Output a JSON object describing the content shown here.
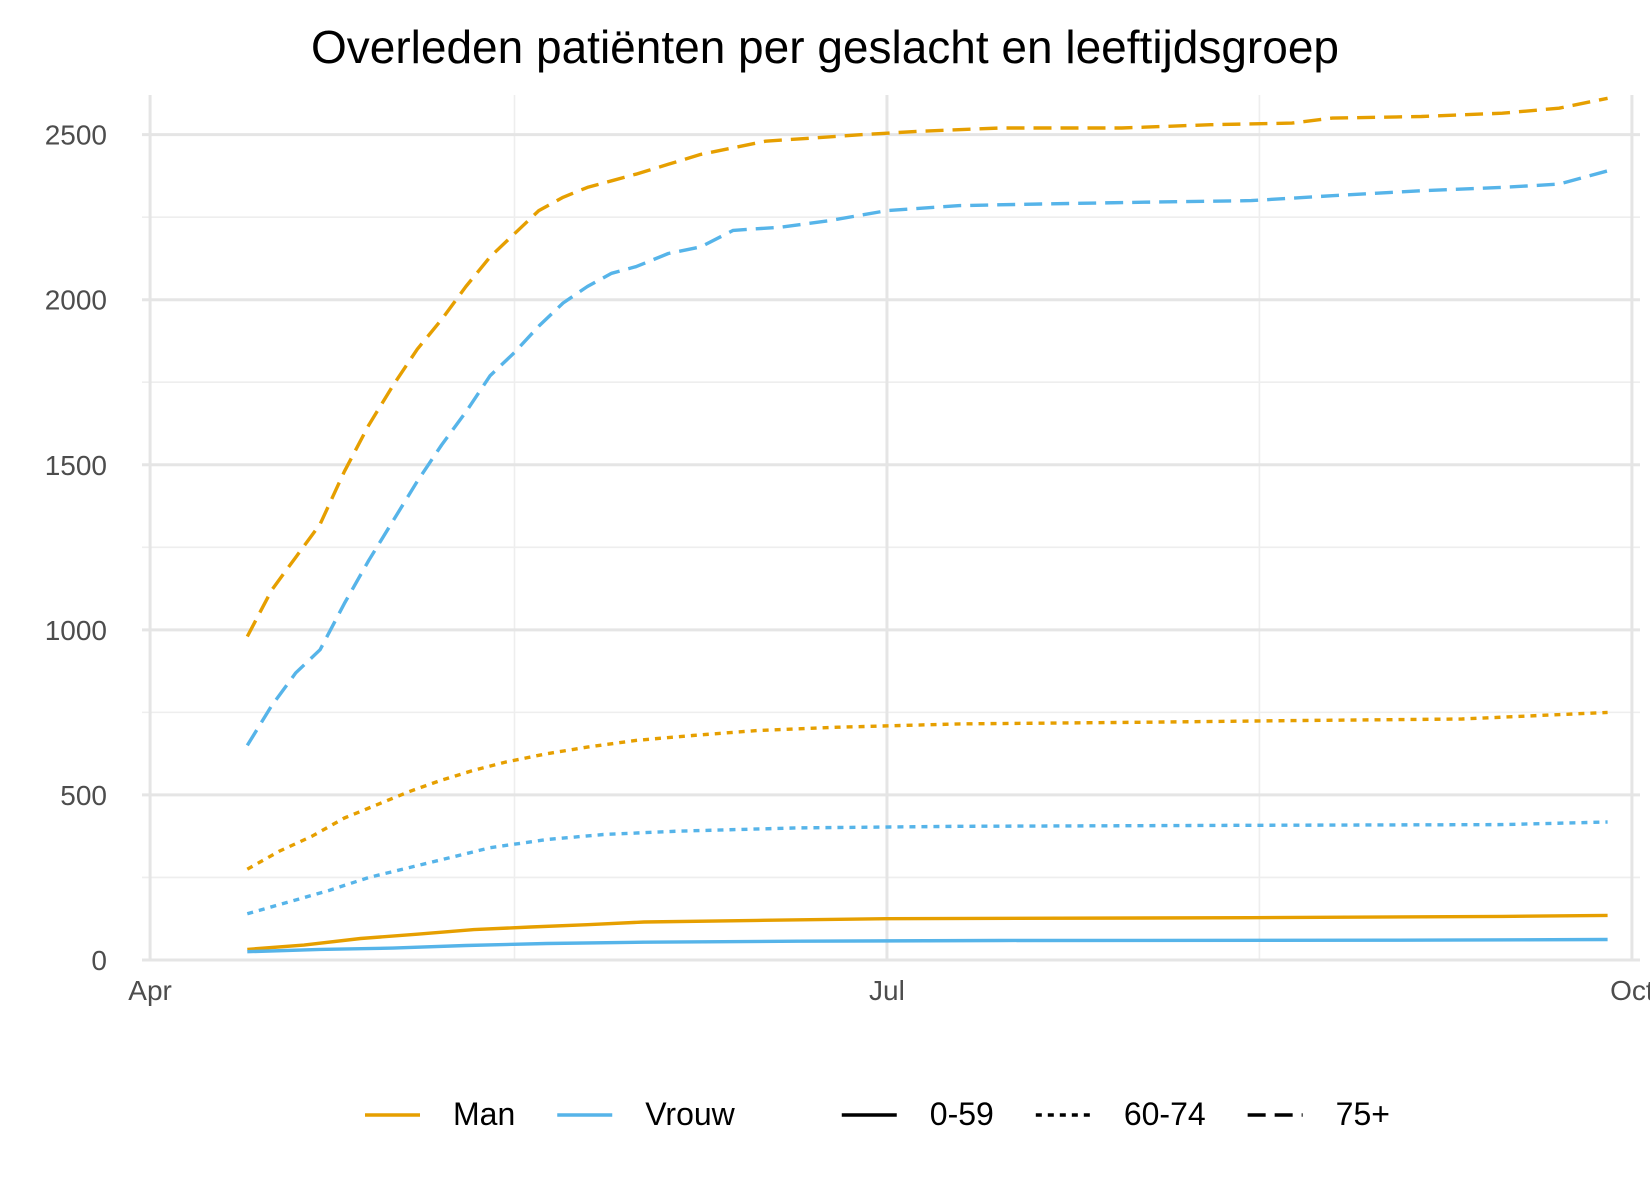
{
  "chart_data": {
    "type": "line",
    "title": "Overleden patiënten per geslacht en leeftijdsgroep",
    "xlabel": "",
    "ylabel": "",
    "x_axis": {
      "type": "time",
      "range": [
        "2020-03-31",
        "2020-10-02"
      ],
      "ticks": [
        {
          "date": "2020-04-01",
          "label": "Apr"
        },
        {
          "date": "2020-07-01",
          "label": "Jul"
        },
        {
          "date": "2020-10-01",
          "label": "Oct"
        }
      ],
      "minor_ticks": [
        "2020-05-16",
        "2020-08-16"
      ]
    },
    "y_axis": {
      "range": [
        0,
        2620
      ],
      "ticks": [
        0,
        500,
        1000,
        1500,
        2000,
        2500
      ],
      "minor_ticks": [
        250,
        750,
        1250,
        1750,
        2250
      ]
    },
    "grid": true,
    "colors": {
      "Man": "#E69F00",
      "Vrouw": "#56B4E9"
    },
    "line_styles": {
      "0-59": "solid",
      "60-74": "dotted",
      "75+": "dashed"
    },
    "legend": {
      "position": "bottom",
      "groups": [
        {
          "title": "",
          "entries": [
            {
              "label": "Man",
              "color": "#E69F00",
              "style": "solid"
            },
            {
              "label": "Vrouw",
              "color": "#56B4E9",
              "style": "solid"
            }
          ]
        },
        {
          "title": "",
          "entries": [
            {
              "label": "0-59",
              "color": "#000000",
              "style": "solid"
            },
            {
              "label": "60-74",
              "color": "#000000",
              "style": "dotted"
            },
            {
              "label": "75+",
              "color": "#000000",
              "style": "dashed"
            }
          ]
        }
      ]
    },
    "series": [
      {
        "name": "Man 75+",
        "gender": "Man",
        "age_group": "75+",
        "points": [
          [
            "2020-04-13",
            980
          ],
          [
            "2020-04-16",
            1120
          ],
          [
            "2020-04-19",
            1220
          ],
          [
            "2020-04-22",
            1320
          ],
          [
            "2020-04-25",
            1480
          ],
          [
            "2020-04-28",
            1620
          ],
          [
            "2020-05-01",
            1740
          ],
          [
            "2020-05-04",
            1850
          ],
          [
            "2020-05-07",
            1940
          ],
          [
            "2020-05-10",
            2040
          ],
          [
            "2020-05-13",
            2130
          ],
          [
            "2020-05-16",
            2200
          ],
          [
            "2020-05-19",
            2270
          ],
          [
            "2020-05-22",
            2310
          ],
          [
            "2020-05-25",
            2340
          ],
          [
            "2020-05-28",
            2360
          ],
          [
            "2020-05-31",
            2380
          ],
          [
            "2020-06-04",
            2410
          ],
          [
            "2020-06-08",
            2440
          ],
          [
            "2020-06-12",
            2460
          ],
          [
            "2020-06-16",
            2480
          ],
          [
            "2020-06-22",
            2490
          ],
          [
            "2020-06-28",
            2500
          ],
          [
            "2020-07-05",
            2510
          ],
          [
            "2020-07-15",
            2520
          ],
          [
            "2020-07-30",
            2520
          ],
          [
            "2020-08-10",
            2530
          ],
          [
            "2020-08-20",
            2535
          ],
          [
            "2020-08-25",
            2550
          ],
          [
            "2020-09-05",
            2555
          ],
          [
            "2020-09-15",
            2565
          ],
          [
            "2020-09-22",
            2580
          ],
          [
            "2020-09-28",
            2610
          ]
        ]
      },
      {
        "name": "Vrouw 75+",
        "gender": "Vrouw",
        "age_group": "75+",
        "points": [
          [
            "2020-04-13",
            650
          ],
          [
            "2020-04-16",
            770
          ],
          [
            "2020-04-19",
            870
          ],
          [
            "2020-04-22",
            940
          ],
          [
            "2020-04-25",
            1080
          ],
          [
            "2020-04-28",
            1210
          ],
          [
            "2020-05-01",
            1330
          ],
          [
            "2020-05-04",
            1450
          ],
          [
            "2020-05-07",
            1560
          ],
          [
            "2020-05-10",
            1660
          ],
          [
            "2020-05-13",
            1770
          ],
          [
            "2020-05-16",
            1840
          ],
          [
            "2020-05-19",
            1920
          ],
          [
            "2020-05-22",
            1990
          ],
          [
            "2020-05-25",
            2040
          ],
          [
            "2020-05-28",
            2080
          ],
          [
            "2020-05-31",
            2100
          ],
          [
            "2020-06-04",
            2140
          ],
          [
            "2020-06-08",
            2160
          ],
          [
            "2020-06-12",
            2210
          ],
          [
            "2020-06-18",
            2220
          ],
          [
            "2020-06-24",
            2240
          ],
          [
            "2020-07-01",
            2270
          ],
          [
            "2020-07-10",
            2285
          ],
          [
            "2020-07-20",
            2290
          ],
          [
            "2020-08-01",
            2295
          ],
          [
            "2020-08-15",
            2300
          ],
          [
            "2020-08-25",
            2315
          ],
          [
            "2020-09-05",
            2330
          ],
          [
            "2020-09-15",
            2340
          ],
          [
            "2020-09-22",
            2350
          ],
          [
            "2020-09-28",
            2390
          ]
        ]
      },
      {
        "name": "Man 60-74",
        "gender": "Man",
        "age_group": "60-74",
        "points": [
          [
            "2020-04-13",
            275
          ],
          [
            "2020-04-17",
            330
          ],
          [
            "2020-04-21",
            375
          ],
          [
            "2020-04-25",
            430
          ],
          [
            "2020-04-29",
            470
          ],
          [
            "2020-05-03",
            510
          ],
          [
            "2020-05-07",
            545
          ],
          [
            "2020-05-11",
            575
          ],
          [
            "2020-05-15",
            600
          ],
          [
            "2020-05-20",
            625
          ],
          [
            "2020-05-25",
            645
          ],
          [
            "2020-05-31",
            665
          ],
          [
            "2020-06-07",
            680
          ],
          [
            "2020-06-15",
            695
          ],
          [
            "2020-06-25",
            705
          ],
          [
            "2020-07-10",
            715
          ],
          [
            "2020-08-01",
            720
          ],
          [
            "2020-08-20",
            725
          ],
          [
            "2020-09-10",
            730
          ],
          [
            "2020-09-28",
            750
          ]
        ]
      },
      {
        "name": "Vrouw 60-74",
        "gender": "Vrouw",
        "age_group": "60-74",
        "points": [
          [
            "2020-04-13",
            140
          ],
          [
            "2020-04-18",
            175
          ],
          [
            "2020-04-23",
            210
          ],
          [
            "2020-04-28",
            250
          ],
          [
            "2020-05-03",
            280
          ],
          [
            "2020-05-08",
            310
          ],
          [
            "2020-05-13",
            340
          ],
          [
            "2020-05-20",
            365
          ],
          [
            "2020-05-27",
            380
          ],
          [
            "2020-06-05",
            390
          ],
          [
            "2020-06-20",
            400
          ],
          [
            "2020-07-10",
            405
          ],
          [
            "2020-08-15",
            408
          ],
          [
            "2020-09-15",
            410
          ],
          [
            "2020-09-28",
            418
          ]
        ]
      },
      {
        "name": "Man 0-59",
        "gender": "Man",
        "age_group": "0-59",
        "points": [
          [
            "2020-04-13",
            32
          ],
          [
            "2020-04-20",
            45
          ],
          [
            "2020-04-27",
            65
          ],
          [
            "2020-05-04",
            78
          ],
          [
            "2020-05-11",
            92
          ],
          [
            "2020-05-18",
            100
          ],
          [
            "2020-05-25",
            107
          ],
          [
            "2020-06-01",
            115
          ],
          [
            "2020-06-15",
            120
          ],
          [
            "2020-07-01",
            125
          ],
          [
            "2020-08-15",
            128
          ],
          [
            "2020-09-15",
            132
          ],
          [
            "2020-09-28",
            135
          ]
        ]
      },
      {
        "name": "Vrouw 0-59",
        "gender": "Vrouw",
        "age_group": "0-59",
        "points": [
          [
            "2020-04-13",
            25
          ],
          [
            "2020-04-22",
            32
          ],
          [
            "2020-05-01",
            36
          ],
          [
            "2020-05-10",
            44
          ],
          [
            "2020-05-20",
            50
          ],
          [
            "2020-06-01",
            54
          ],
          [
            "2020-06-20",
            57
          ],
          [
            "2020-07-15",
            59
          ],
          [
            "2020-09-01",
            60
          ],
          [
            "2020-09-28",
            62
          ]
        ]
      }
    ]
  }
}
